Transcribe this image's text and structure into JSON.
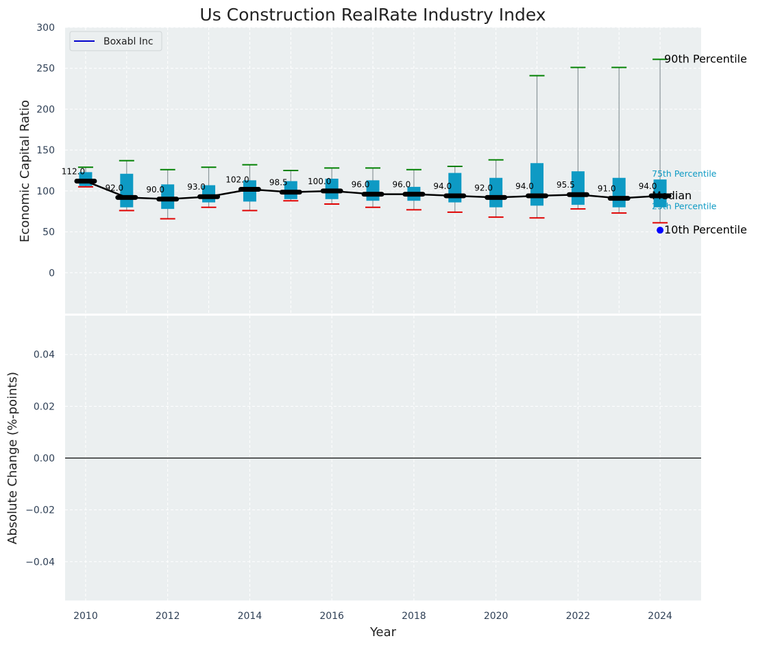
{
  "chart_data": [
    {
      "type": "box",
      "title": "Us Construction RealRate Industry Index",
      "xlabel": "",
      "ylabel": "Economic Capital Ratio",
      "ylim": [
        -50,
        300
      ],
      "xlim": [
        2009.5,
        2025
      ],
      "yticks": [
        "300",
        "250",
        "200",
        "150",
        "100",
        "50",
        "0"
      ],
      "grid": true,
      "legend": {
        "location": "upper-left",
        "entries": [
          {
            "name": "Boxabl Inc",
            "color": "#0000cc"
          }
        ]
      },
      "years": [
        2010,
        2011,
        2012,
        2013,
        2014,
        2015,
        2016,
        2017,
        2018,
        2019,
        2020,
        2021,
        2022,
        2023,
        2024
      ],
      "median": [
        112.0,
        92.0,
        90.0,
        93.0,
        102.0,
        98.5,
        100.0,
        96.0,
        96.0,
        94.0,
        92.0,
        94.0,
        95.5,
        91.0,
        94.0
      ],
      "median_labels": [
        "112.0",
        "92.0",
        "90.0",
        "93.0",
        "102.0",
        "98.5",
        "100.0",
        "96.0",
        "96.0",
        "94.0",
        "92.0",
        "94.0",
        "95.5",
        "91.0",
        "94.0"
      ],
      "p10": [
        105,
        76,
        66,
        80,
        76,
        88,
        84,
        80,
        77,
        74,
        68,
        67,
        78,
        73,
        61
      ],
      "p25": [
        106,
        80,
        78,
        86,
        87,
        90,
        90,
        88,
        88,
        86,
        80,
        82,
        83,
        80,
        80
      ],
      "p75": [
        123,
        121,
        108,
        107,
        113,
        112,
        115,
        113,
        105,
        122,
        116,
        134,
        124,
        116,
        114
      ],
      "p90": [
        129,
        137,
        126,
        129,
        132,
        125,
        128,
        128,
        126,
        130,
        138,
        241,
        251,
        251,
        261
      ],
      "company": {
        "name": "Boxabl Inc",
        "year": 2024,
        "value": 52
      },
      "annotations": {
        "p90": "90th Percentile",
        "p75": "75th Percentile",
        "median": "Median",
        "p25": "25th Percentile",
        "p10": "10th Percentile"
      },
      "colors": {
        "box": "#0e9ac4",
        "p90_cap": "#008000",
        "p10_cap": "#e00000",
        "median_line": "#000000",
        "whisker": "#8a9599",
        "company_dot": "#0000ff",
        "panel_bg": "#ebeff0"
      }
    },
    {
      "type": "line",
      "xlabel": "Year",
      "ylabel": "Absolute Change (%-points)",
      "ylim": [
        -0.055,
        0.055
      ],
      "yticks": [
        "0.04",
        "0.02",
        "0.00",
        "−0.02",
        "−0.04"
      ],
      "xticks": [
        "2010",
        "2012",
        "2014",
        "2016",
        "2018",
        "2020",
        "2022",
        "2024"
      ],
      "series": [],
      "reference_line": 0
    }
  ]
}
